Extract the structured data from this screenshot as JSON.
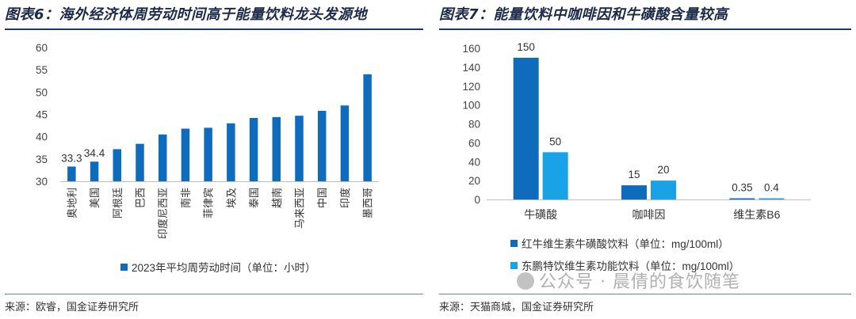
{
  "left": {
    "title": "图表6：海外经济体周劳动时间高于能量饮料龙头发源地",
    "source": "来源：欧睿，国金证券研究所"
  },
  "right": {
    "title": "图表7：能量饮料中咖啡因和牛磺酸含量较高",
    "source": "来源：天猫商城，国金证券研究所"
  },
  "watermark": "公众号 · 晨倩的食饮随笔",
  "colors": {
    "bar_dark": "#0f6cbd",
    "bar_light": "#19a2e6",
    "rule": "#1b3a6b",
    "title": "#1b2a4a"
  },
  "chart_data": [
    {
      "type": "bar",
      "categories": [
        "奥地利",
        "美国",
        "阿根廷",
        "巴西",
        "印度尼西亚",
        "南非",
        "菲律宾",
        "埃及",
        "泰国",
        "越南",
        "马来西亚",
        "中国",
        "印度",
        "墨西哥"
      ],
      "series": [
        {
          "name": "2023年平均周劳动时间（单位：小时）",
          "values": [
            33.3,
            34.4,
            37.2,
            38.4,
            40.5,
            41.8,
            42.0,
            43.0,
            44.2,
            44.4,
            44.7,
            45.8,
            47.0,
            54.0
          ]
        }
      ],
      "data_labels": [
        "33.3",
        "34.4"
      ],
      "ylim": [
        30,
        60
      ],
      "yticks": [
        30,
        35,
        40,
        45,
        50,
        55,
        60
      ],
      "legend_position": "bottom"
    },
    {
      "type": "bar",
      "categories": [
        "牛磺酸",
        "咖啡因",
        "维生素B6"
      ],
      "series": [
        {
          "name": "红牛维生素牛磺酸饮料（单位：mg/100ml）",
          "values": [
            150,
            15,
            0.35
          ],
          "labels": [
            "150",
            "15",
            "0.35"
          ]
        },
        {
          "name": "东鹏特饮维生素功能饮料（单位：mg/100ml）",
          "values": [
            50,
            20,
            0.4
          ],
          "labels": [
            "50",
            "20",
            "0.4"
          ]
        }
      ],
      "ylim": [
        0,
        160
      ],
      "yticks": [
        0,
        20,
        40,
        60,
        80,
        100,
        120,
        140,
        160
      ],
      "legend_position": "bottom"
    }
  ]
}
